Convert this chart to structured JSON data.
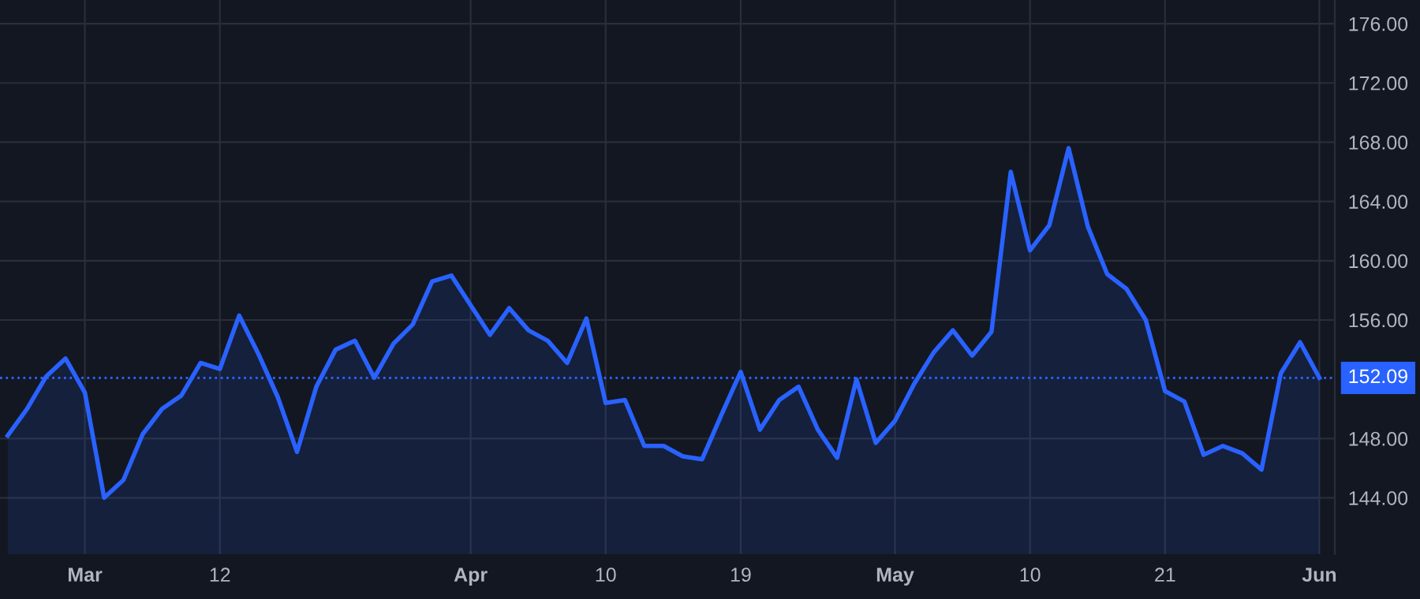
{
  "chart_data": {
    "type": "area",
    "categories": [
      null,
      null,
      null,
      null,
      "Mar",
      null,
      null,
      null,
      null,
      null,
      null,
      "12",
      null,
      null,
      null,
      null,
      null,
      null,
      null,
      null,
      null,
      null,
      null,
      null,
      "Apr",
      null,
      null,
      null,
      null,
      null,
      null,
      "10",
      null,
      null,
      null,
      null,
      null,
      null,
      "19",
      null,
      null,
      null,
      null,
      null,
      null,
      null,
      "May",
      null,
      null,
      null,
      null,
      null,
      null,
      "10",
      null,
      null,
      null,
      null,
      null,
      null,
      "21",
      null,
      null,
      null,
      null,
      null,
      null,
      null,
      "Jun"
    ],
    "series": [
      {
        "color": "#2962ff",
        "values": [
          148.2,
          150.0,
          152.2,
          153.4,
          151.1,
          144.0,
          145.2,
          148.3,
          150.0,
          150.9,
          153.1,
          152.7,
          156.3,
          153.7,
          150.8,
          147.1,
          151.5,
          154.0,
          154.6,
          152.1,
          154.4,
          155.7,
          158.6,
          159.0,
          157.0,
          155.0,
          156.8,
          155.3,
          154.6,
          153.1,
          156.1,
          150.4,
          150.6,
          147.5,
          147.5,
          146.8,
          146.6,
          149.6,
          152.5,
          148.6,
          150.6,
          151.5,
          148.6,
          146.7,
          152.0,
          147.7,
          149.2,
          151.7,
          153.8,
          155.3,
          153.6,
          155.2,
          166.0,
          160.7,
          162.4,
          167.6,
          162.3,
          159.1,
          158.1,
          156.0,
          151.2,
          150.5,
          146.9,
          147.5,
          147.0,
          145.9,
          152.4,
          154.5,
          152.1
        ]
      }
    ],
    "ylim": [
      140.2,
      177.6
    ],
    "yticks": [
      {
        "value": 144,
        "label": "144.00"
      },
      {
        "value": 148,
        "label": "148.00"
      },
      {
        "value": 156,
        "label": "156.00"
      },
      {
        "value": 160,
        "label": "160.00"
      },
      {
        "value": 164,
        "label": "164.00"
      },
      {
        "value": 168,
        "label": "168.00"
      },
      {
        "value": 172,
        "label": "172.00"
      },
      {
        "value": 176,
        "label": "176.00"
      }
    ],
    "ref_lines": [
      {
        "axis": "y",
        "value": 152.09,
        "label": "152.09",
        "color": "#2962ff",
        "line_style": "dotted"
      }
    ],
    "grid": true
  }
}
